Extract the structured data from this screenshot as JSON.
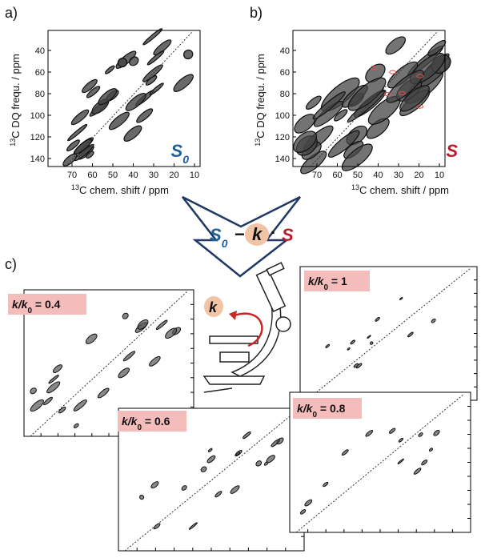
{
  "panel_a": {
    "label": "a)",
    "y_axis_label": {
      "sup": "13",
      "text": "C DQ frequ. / ppm"
    },
    "x_axis_label": {
      "sup": "13",
      "text": "C chem. shift / ppm"
    },
    "xticks": [
      70,
      60,
      50,
      40,
      30,
      20,
      10
    ],
    "yticks": [
      40,
      60,
      80,
      100,
      120,
      140
    ],
    "tag": {
      "main": "S",
      "sub": "0"
    }
  },
  "panel_b": {
    "label": "b)",
    "y_axis_label": {
      "sup": "13",
      "text": "C DQ frequ. / ppm"
    },
    "x_axis_label": {
      "sup": "13",
      "text": "C chem. shift / ppm"
    },
    "xticks": [
      70,
      60,
      50,
      40,
      30,
      20,
      10
    ],
    "yticks": [
      40,
      60,
      80,
      100,
      120,
      140
    ],
    "tag": {
      "main": "S"
    }
  },
  "formula": {
    "s0": {
      "main": "S",
      "sub": "0"
    },
    "minus": "−",
    "k": "k",
    "dot": "·",
    "s": "S"
  },
  "panel_c": {
    "label": "c)",
    "microscope_k": "k",
    "spectra": [
      {
        "k": "k/k",
        "sub": "0",
        "eq": " = 0.4"
      },
      {
        "k": "k/k",
        "sub": "0",
        "eq": " = 0.6"
      },
      {
        "k": "k/k",
        "sub": "0",
        "eq": " = 1"
      },
      {
        "k": "k/k",
        "sub": "0",
        "eq": " = 0.8"
      }
    ]
  }
}
